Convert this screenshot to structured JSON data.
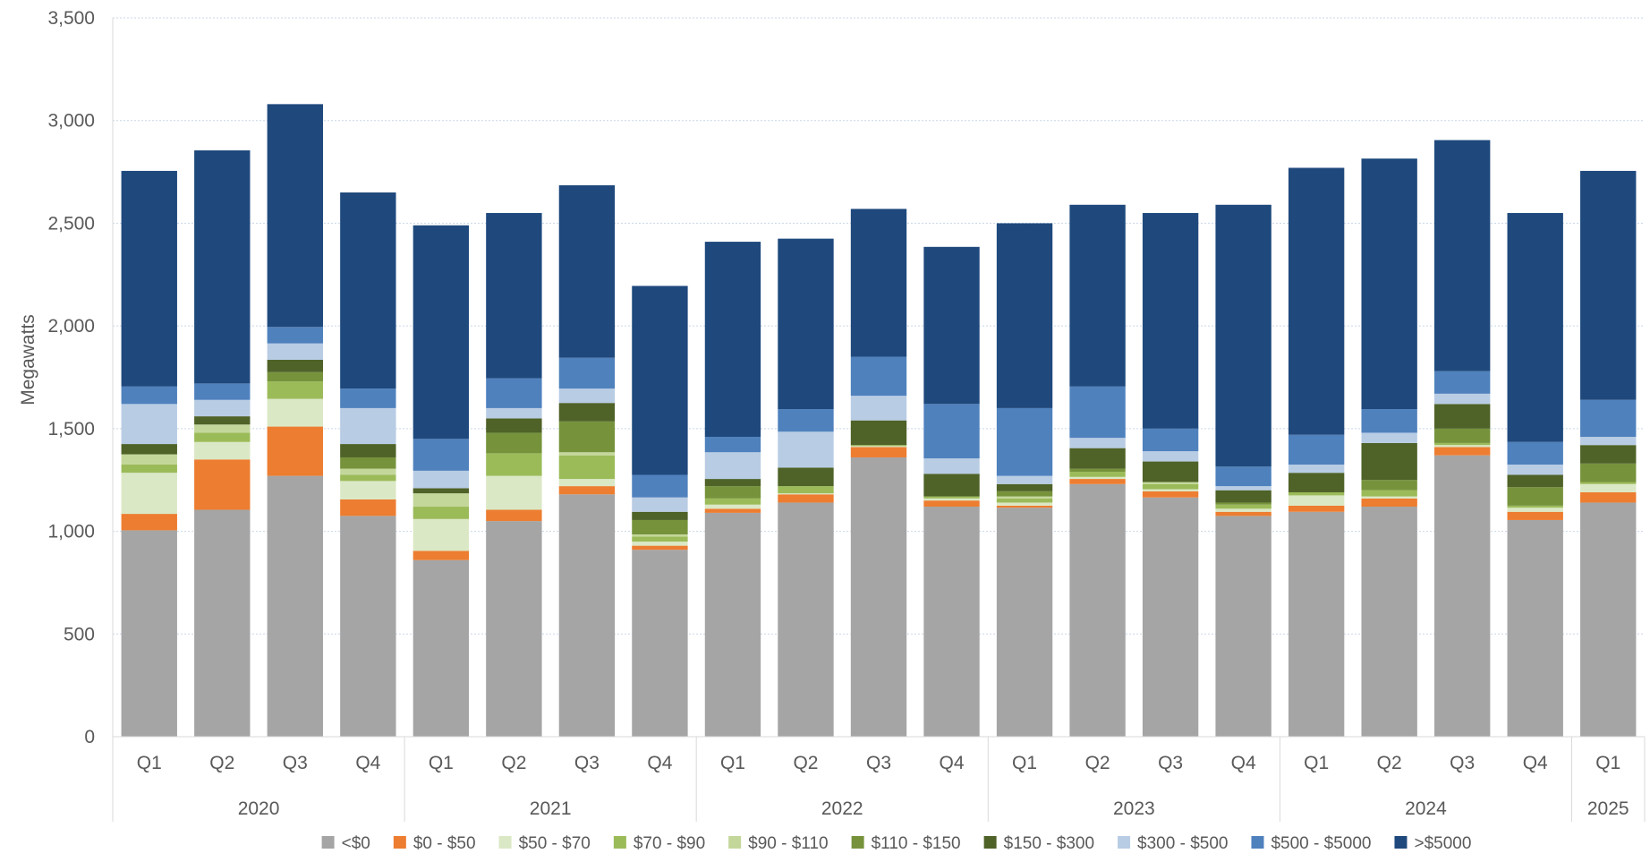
{
  "chart_data": {
    "type": "bar",
    "stacked": true,
    "title": "",
    "xlabel": "",
    "ylabel": "Megawatts",
    "ylim": [
      0,
      3500
    ],
    "yticks": [
      0,
      500,
      1000,
      1500,
      2000,
      2500,
      3000,
      3500
    ],
    "ytick_labels": [
      "0",
      "500",
      "1,000",
      "1,500",
      "2,000",
      "2,500",
      "3,000",
      "3,500"
    ],
    "grid": true,
    "legend_position": "bottom",
    "categories": [
      "Q1",
      "Q2",
      "Q3",
      "Q4",
      "Q1",
      "Q2",
      "Q3",
      "Q4",
      "Q1",
      "Q2",
      "Q3",
      "Q4",
      "Q1",
      "Q2",
      "Q3",
      "Q4",
      "Q1",
      "Q2",
      "Q3",
      "Q4",
      "Q1"
    ],
    "groups": [
      {
        "label": "2020",
        "count": 4
      },
      {
        "label": "2021",
        "count": 4
      },
      {
        "label": "2022",
        "count": 4
      },
      {
        "label": "2023",
        "count": 4
      },
      {
        "label": "2024",
        "count": 4
      },
      {
        "label": "2025",
        "count": 1
      }
    ],
    "series": [
      {
        "name": "<$0",
        "color": "#a5a5a5",
        "values": [
          1005,
          1105,
          1270,
          1075,
          860,
          1050,
          1180,
          910,
          1090,
          1140,
          1360,
          1120,
          1115,
          1230,
          1165,
          1075,
          1095,
          1120,
          1370,
          1055,
          1140
        ]
      },
      {
        "name": "$0 - $50",
        "color": "#ed7d31",
        "values": [
          80,
          245,
          240,
          80,
          45,
          55,
          40,
          20,
          20,
          40,
          50,
          30,
          10,
          25,
          30,
          20,
          30,
          40,
          40,
          40,
          50
        ]
      },
      {
        "name": "$50 - $70",
        "color": "#dbe8c5",
        "values": [
          200,
          85,
          135,
          90,
          155,
          165,
          35,
          20,
          20,
          5,
          5,
          10,
          15,
          10,
          10,
          15,
          50,
          10,
          10,
          20,
          40
        ]
      },
      {
        "name": "$70 - $90",
        "color": "#9bbb59",
        "values": [
          40,
          45,
          85,
          30,
          60,
          110,
          115,
          25,
          30,
          35,
          5,
          10,
          20,
          25,
          25,
          20,
          15,
          30,
          10,
          10,
          10
        ]
      },
      {
        "name": "$90 - $110",
        "color": "#c4d79b",
        "values": [
          50,
          40,
          0,
          30,
          65,
          0,
          15,
          10,
          0,
          0,
          0,
          0,
          10,
          0,
          10,
          0,
          0,
          0,
          0,
          0,
          0
        ]
      },
      {
        "name": "$110 - $150",
        "color": "#76933c",
        "values": [
          0,
          0,
          45,
          55,
          0,
          100,
          150,
          70,
          60,
          0,
          0,
          0,
          25,
          15,
          0,
          10,
          0,
          50,
          70,
          90,
          90
        ]
      },
      {
        "name": "$150 - $300",
        "color": "#4f6228",
        "values": [
          50,
          40,
          60,
          65,
          25,
          70,
          90,
          40,
          35,
          90,
          120,
          110,
          35,
          100,
          100,
          60,
          95,
          180,
          120,
          60,
          90
        ]
      },
      {
        "name": "$300 - $500",
        "color": "#b8cce4",
        "values": [
          195,
          80,
          80,
          175,
          85,
          50,
          70,
          70,
          130,
          175,
          120,
          75,
          40,
          50,
          50,
          20,
          40,
          50,
          50,
          50,
          40
        ]
      },
      {
        "name": "$500 - $5000",
        "color": "#4f81bd",
        "values": [
          85,
          80,
          80,
          95,
          155,
          145,
          150,
          110,
          75,
          110,
          190,
          265,
          330,
          250,
          110,
          95,
          145,
          115,
          110,
          110,
          180
        ]
      },
      {
        "name": ">$5000",
        "color": "#1f497d",
        "values": [
          1050,
          1135,
          1085,
          955,
          1040,
          805,
          840,
          920,
          950,
          830,
          720,
          765,
          900,
          885,
          1050,
          1275,
          1300,
          1220,
          1125,
          1115,
          1115
        ]
      }
    ]
  }
}
